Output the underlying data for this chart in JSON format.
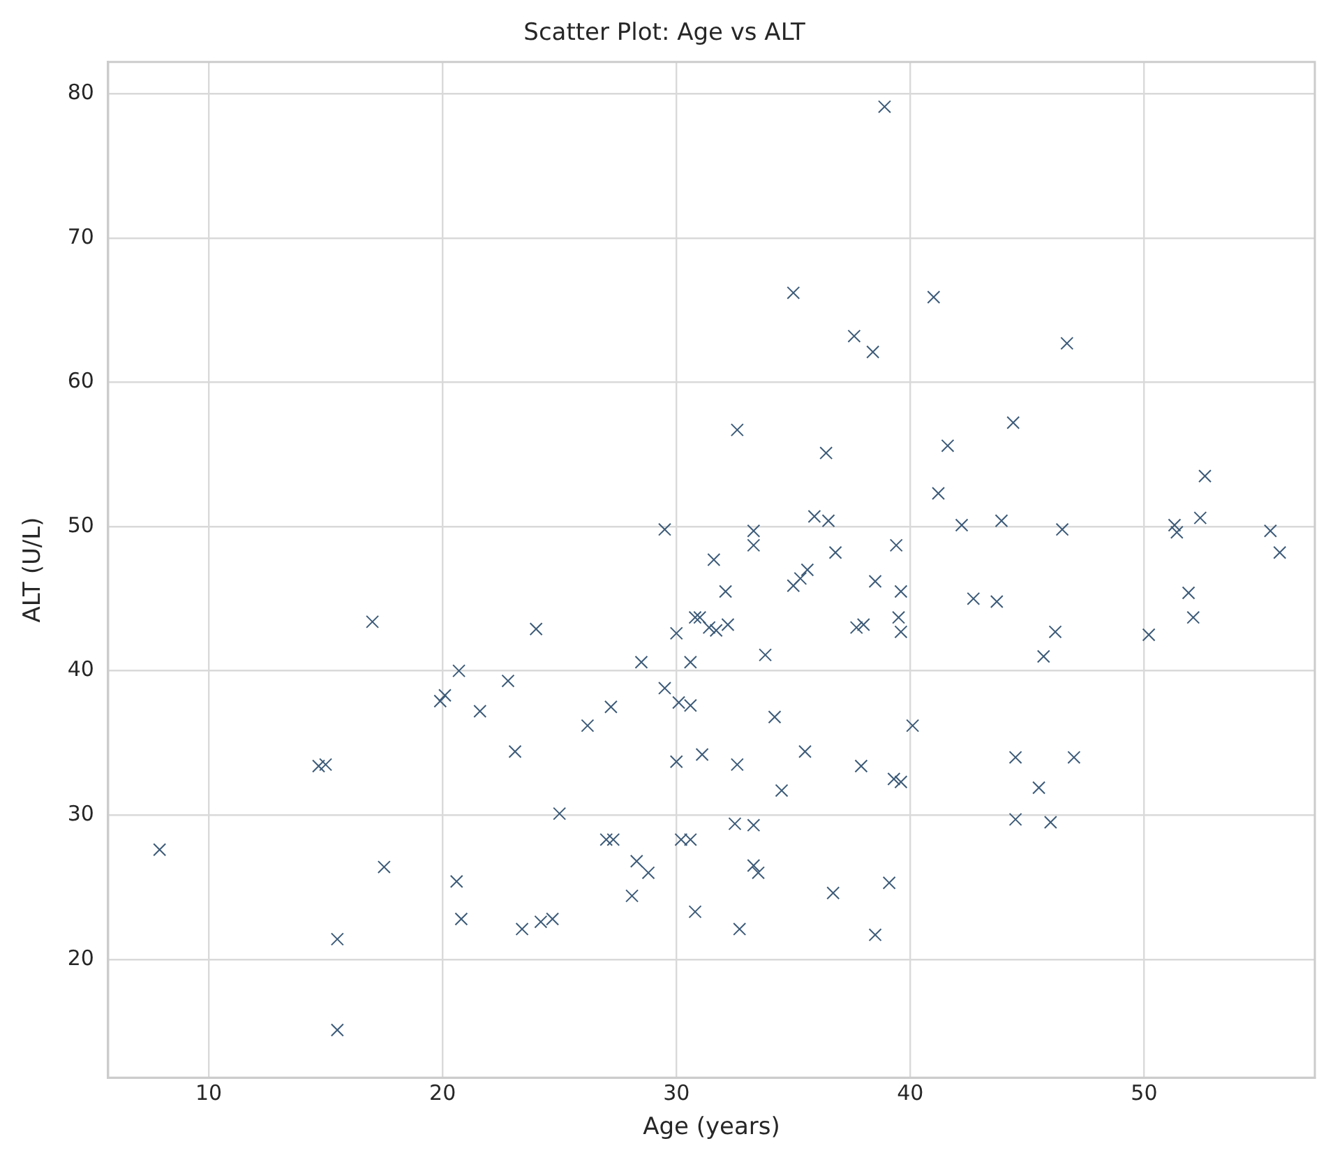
{
  "chart_data": {
    "type": "scatter",
    "title": "Scatter Plot: Age vs ALT",
    "xlabel": "Age (years)",
    "ylabel": "ALT (U/L)",
    "xlim": [
      5.7,
      57.3
    ],
    "ylim": [
      11.8,
      82.2
    ],
    "xticks": [
      10,
      20,
      30,
      40,
      50
    ],
    "yticks": [
      20,
      30,
      40,
      50,
      60,
      70,
      80
    ],
    "grid": true,
    "marker": "cross",
    "series": [
      {
        "color": "#3b5a78",
        "x": [
          7.9,
          14.7,
          15.0,
          17.0,
          17.5,
          15.5,
          15.5,
          24.0,
          20.7,
          20.1,
          19.9,
          21.6,
          22.8,
          23.1,
          28.5,
          27.2,
          26.2,
          30.6,
          29.5,
          30.1,
          30.6,
          30.0,
          30.8,
          30.0,
          31.4,
          25.0,
          27.0,
          27.3,
          30.2,
          30.6,
          28.3,
          28.8,
          28.1,
          30.8,
          20.6,
          20.8,
          23.4,
          24.2,
          24.7,
          38.9,
          35.0,
          41.0,
          37.6,
          38.4,
          46.7,
          32.6,
          36.4,
          44.4,
          41.6,
          41.2,
          52.6,
          52.4,
          51.3,
          51.4,
          55.4,
          55.8,
          42.2,
          43.9,
          46.5,
          33.3,
          31.6,
          33.3,
          35.9,
          36.5,
          36.8,
          39.4,
          35.6,
          32.1,
          35.3,
          35.0,
          38.5,
          39.6,
          31.0,
          31.7,
          32.2,
          37.7,
          38.0,
          39.5,
          39.6,
          33.8,
          42.7,
          43.7,
          46.2,
          45.7,
          50.2,
          51.9,
          52.1,
          34.2,
          40.1,
          31.1,
          32.6,
          35.5,
          34.5,
          37.9,
          39.3,
          39.6,
          44.5,
          47.0,
          45.5,
          44.5,
          46.0,
          32.5,
          33.3,
          33.3,
          33.5,
          36.7,
          39.1,
          32.7,
          38.5,
          29.5
        ],
        "values": [
          27.6,
          33.4,
          33.5,
          43.4,
          26.4,
          21.4,
          15.1,
          42.9,
          40.0,
          38.3,
          37.9,
          37.2,
          39.3,
          34.4,
          40.6,
          37.5,
          36.2,
          40.6,
          38.8,
          37.8,
          37.6,
          33.7,
          43.7,
          42.6,
          43.0,
          30.1,
          28.3,
          28.3,
          28.3,
          28.3,
          26.8,
          26.0,
          24.4,
          23.3,
          25.4,
          22.8,
          22.1,
          22.6,
          22.8,
          79.1,
          66.2,
          65.9,
          63.2,
          62.1,
          62.7,
          56.7,
          55.1,
          57.2,
          55.6,
          52.3,
          53.5,
          50.6,
          50.1,
          49.6,
          49.7,
          48.2,
          50.1,
          50.4,
          49.8,
          49.7,
          47.7,
          48.7,
          50.7,
          50.4,
          48.2,
          48.7,
          47.0,
          45.5,
          46.4,
          45.9,
          46.2,
          45.5,
          43.7,
          42.8,
          43.2,
          43.0,
          43.2,
          43.7,
          42.7,
          41.1,
          45.0,
          44.8,
          42.7,
          41.0,
          42.5,
          45.4,
          43.7,
          36.8,
          36.2,
          34.2,
          33.5,
          34.4,
          31.7,
          33.4,
          32.5,
          32.3,
          34.0,
          34.0,
          31.9,
          29.7,
          29.5,
          29.4,
          29.3,
          26.5,
          26.0,
          24.6,
          25.3,
          22.1,
          21.7,
          49.8
        ]
      }
    ]
  }
}
